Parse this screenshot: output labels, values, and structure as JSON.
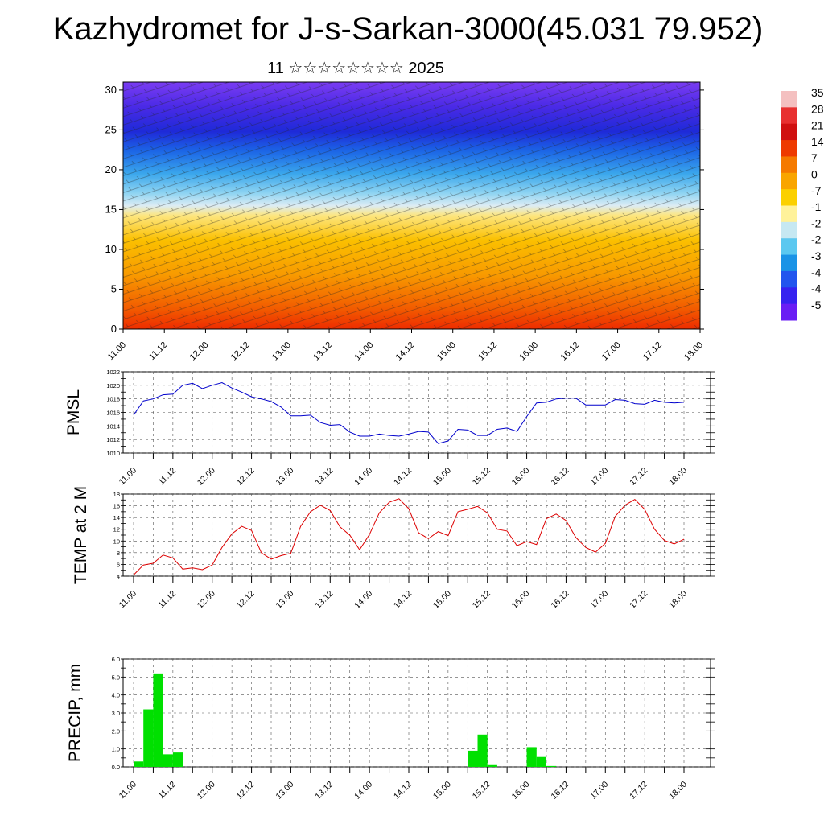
{
  "title": "Kazhydromet for J-s-Sarkan-3000(45.031 79.952)",
  "subtitle": "11 ☆☆☆☆☆☆☆☆ 2025",
  "colors": {
    "pmsl_line": "#0000cc",
    "temp_line": "#dd0000",
    "precip_bar": "#00e000",
    "grid": "#555555"
  },
  "time_ticks": [
    "11.00",
    "11.12",
    "12.00",
    "12.12",
    "13.00",
    "13.12",
    "14.00",
    "14.12",
    "15.00",
    "15.12",
    "16.00",
    "16.12",
    "17.00",
    "17.12",
    "18.00"
  ],
  "chart_data": [
    {
      "type": "heatmap",
      "name_in_image": "cross-section",
      "x_ticks": [
        "11.00",
        "11.12",
        "12.00",
        "12.12",
        "13.00",
        "13.12",
        "14.00",
        "14.12",
        "15.00",
        "15.12",
        "16.00",
        "16.12",
        "17.00",
        "17.12",
        "18.00"
      ],
      "y_ticks": [
        0,
        5,
        10,
        15,
        20,
        25,
        30
      ],
      "ylim": [
        0,
        31
      ],
      "colorbar_labels": [
        "35",
        "28",
        "21",
        "14",
        "7",
        "0",
        "-7",
        "-1",
        "-2",
        "-2",
        "-3",
        "-4",
        "-4",
        "-5"
      ],
      "colorbar_colors": [
        "#f4c0c0",
        "#e83030",
        "#d01010",
        "#ee3a00",
        "#f57a00",
        "#f9a500",
        "#fbd000",
        "#fff29a",
        "#c6e8f2",
        "#5bc8f0",
        "#1a93e6",
        "#2255ee",
        "#3622f0",
        "#6a1ef4"
      ]
    },
    {
      "type": "line",
      "ylabel": "PMSL",
      "ylim": [
        1010,
        1022
      ],
      "y_ticks": [
        1010,
        1012,
        1014,
        1016,
        1018,
        1020,
        1022
      ],
      "x": [
        0,
        3,
        6,
        9,
        12,
        15,
        18,
        21,
        24,
        27,
        30,
        33,
        36,
        39,
        42,
        45,
        48,
        51,
        54,
        57,
        60,
        63,
        66,
        69,
        72,
        75,
        78,
        81,
        84,
        87,
        90,
        93,
        96,
        99,
        102,
        105,
        108,
        111,
        114,
        117,
        120,
        123,
        126,
        129,
        132,
        135,
        138,
        141,
        144,
        147,
        150,
        153,
        156,
        159,
        162,
        165,
        168
      ],
      "values": [
        1015.6,
        1017.7,
        1018.0,
        1018.6,
        1018.7,
        1020.0,
        1020.3,
        1019.5,
        1020.0,
        1020.4,
        1019.6,
        1019.0,
        1018.3,
        1018.0,
        1017.6,
        1016.8,
        1015.5,
        1015.5,
        1015.6,
        1014.5,
        1014.1,
        1014.2,
        1013.1,
        1012.5,
        1012.5,
        1012.8,
        1012.6,
        1012.5,
        1012.8,
        1013.2,
        1013.1,
        1011.4,
        1011.8,
        1013.5,
        1013.4,
        1012.6,
        1012.6,
        1013.5,
        1013.7,
        1013.2,
        1015.4,
        1017.4,
        1017.5,
        1018.0,
        1018.1,
        1018.1,
        1017.1,
        1017.1,
        1017.1,
        1017.9,
        1017.8,
        1017.3,
        1017.2,
        1017.8,
        1017.5,
        1017.4,
        1017.5
      ]
    },
    {
      "type": "line",
      "ylabel": "TEMP at 2 M",
      "ylim": [
        4,
        18
      ],
      "y_ticks": [
        4,
        6,
        8,
        10,
        12,
        14,
        16,
        18
      ],
      "x": [
        0,
        3,
        6,
        9,
        12,
        15,
        18,
        21,
        24,
        27,
        30,
        33,
        36,
        39,
        42,
        45,
        48,
        51,
        54,
        57,
        60,
        63,
        66,
        69,
        72,
        75,
        78,
        81,
        84,
        87,
        90,
        93,
        96,
        99,
        102,
        105,
        108,
        111,
        114,
        117,
        120,
        123,
        126,
        129,
        132,
        135,
        138,
        141,
        144,
        147,
        150,
        153,
        156,
        159,
        162,
        165,
        168
      ],
      "values": [
        4.2,
        5.9,
        6.2,
        7.6,
        7.1,
        5.2,
        5.4,
        5.1,
        5.9,
        8.9,
        11.2,
        12.5,
        11.8,
        8.0,
        6.9,
        7.5,
        7.9,
        12.5,
        15.0,
        16.1,
        15.2,
        12.4,
        11.0,
        8.5,
        11.1,
        14.8,
        16.6,
        17.2,
        15.5,
        11.4,
        10.4,
        11.6,
        10.9,
        15.0,
        15.4,
        15.9,
        14.8,
        12.0,
        11.7,
        9.2,
        9.9,
        9.4,
        13.8,
        14.6,
        13.5,
        10.6,
        8.9,
        8.1,
        9.6,
        14.2,
        16.1,
        17.1,
        15.4,
        12.0,
        10.1,
        9.5,
        10.3
      ]
    },
    {
      "type": "bar",
      "ylabel": "PRECIP, mm",
      "ylim": [
        0,
        6
      ],
      "y_ticks": [
        "0.0",
        "1.0",
        "2.0",
        "3.0",
        "4.0",
        "5.0",
        "6.0"
      ],
      "x": [
        0,
        3,
        6,
        9,
        12,
        15,
        18,
        102,
        105,
        108,
        120,
        123,
        126
      ],
      "values": [
        0.3,
        3.2,
        5.2,
        0.7,
        0.8,
        0.0,
        0.0,
        0.9,
        1.8,
        0.1,
        1.1,
        0.55,
        0.05
      ]
    }
  ]
}
